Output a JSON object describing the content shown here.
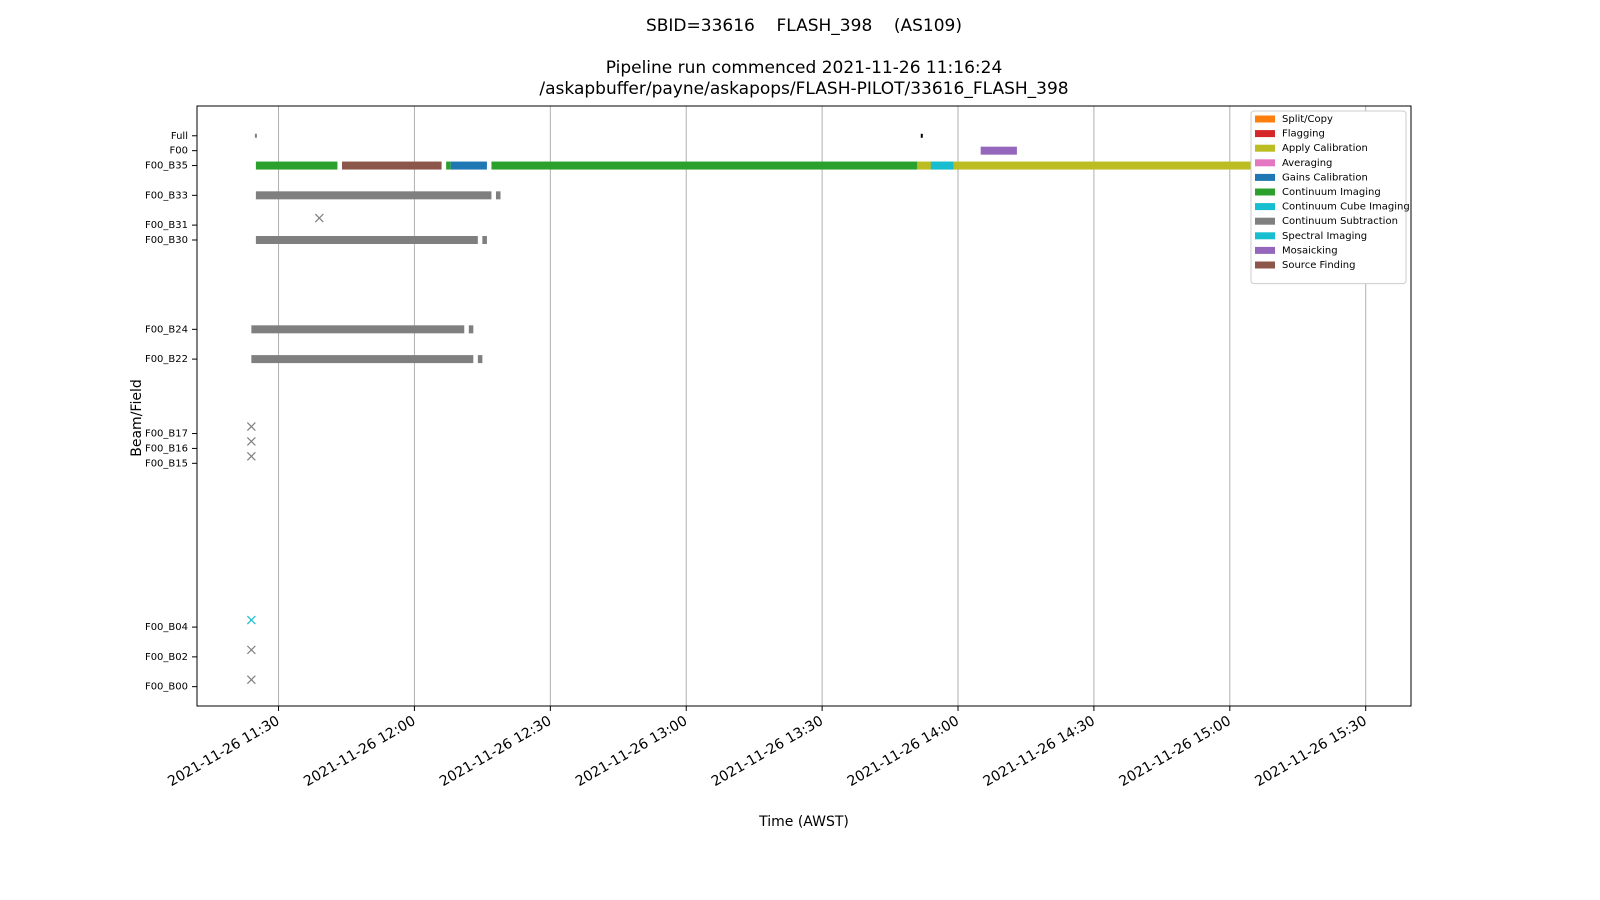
{
  "chart_data": {
    "type": "gantt",
    "title": "SBID=33616    FLASH_398    (AS109)",
    "subtitle": [
      "Pipeline run commenced 2021-11-26 11:16:24",
      "/askapbuffer/payne/askapops/FLASH-PILOT/33616_FLASH_398"
    ],
    "x_label": "Time (AWST)",
    "y_label": "Beam/Field",
    "xlim": [
      "2021-11-26 11:12",
      "2021-11-26 15:40"
    ],
    "xticks": [
      "2021-11-26 11:30",
      "2021-11-26 12:00",
      "2021-11-26 12:30",
      "2021-11-26 13:00",
      "2021-11-26 13:30",
      "2021-11-26 14:00",
      "2021-11-26 14:30",
      "2021-11-26 15:00",
      "2021-11-26 15:30"
    ],
    "ylim": [
      -1.3,
      39
    ],
    "yticks": [
      {
        "value": 37,
        "label": "Full"
      },
      {
        "value": 36,
        "label": "F00"
      },
      {
        "value": 35,
        "label": "F00_B35"
      },
      {
        "value": 33,
        "label": "F00_B33"
      },
      {
        "value": 31,
        "label": "F00_B31"
      },
      {
        "value": 30,
        "label": "F00_B30"
      },
      {
        "value": 24,
        "label": "F00_B24"
      },
      {
        "value": 22,
        "label": "F00_B22"
      },
      {
        "value": 17,
        "label": "F00_B17"
      },
      {
        "value": 16,
        "label": "F00_B16"
      },
      {
        "value": 15,
        "label": "F00_B15"
      },
      {
        "value": 4,
        "label": "F00_B04"
      },
      {
        "value": 2,
        "label": "F00_B02"
      },
      {
        "value": 0,
        "label": "F00_B00"
      }
    ],
    "grid": "x",
    "legend": "upper right",
    "stages": [
      {
        "name": "Split/Copy",
        "color": "#ff7f0e"
      },
      {
        "name": "Flagging",
        "color": "#d62728"
      },
      {
        "name": "Apply Calibration",
        "color": "#bcbd22"
      },
      {
        "name": "Averaging",
        "color": "#e377c2"
      },
      {
        "name": "Gains Calibration",
        "color": "#1f77b4"
      },
      {
        "name": "Continuum Imaging",
        "color": "#2ca02c"
      },
      {
        "name": "Continuum Cube Imaging",
        "color": "#17becf"
      },
      {
        "name": "Continuum Subtraction",
        "color": "#7f7f7f"
      },
      {
        "name": "Spectral Imaging",
        "color": "#17becf"
      },
      {
        "name": "Mosaicking",
        "color": "#9467bd"
      },
      {
        "name": "Source Finding",
        "color": "#8c564b"
      }
    ],
    "tasks": [
      {
        "row": 36,
        "start": "2021-11-26 14:05",
        "end": "2021-11-26 14:13",
        "stage": 9
      },
      {
        "row": 35,
        "start": "2021-11-26 13:51",
        "end": "2021-11-26 15:28",
        "stage": 2
      },
      {
        "row": 35,
        "start": "2021-11-26 11:25",
        "end": "2021-11-26 11:43",
        "stage": 5
      },
      {
        "row": 35,
        "start": "2021-11-26 11:44",
        "end": "2021-11-26 12:06",
        "stage": 10
      },
      {
        "row": 35,
        "start": "2021-11-26 12:07",
        "end": "2021-11-26 12:08",
        "stage": 5
      },
      {
        "row": 35,
        "start": "2021-11-26 12:08",
        "end": "2021-11-26 12:16",
        "stage": 4
      },
      {
        "row": 35,
        "start": "2021-11-26 12:17",
        "end": "2021-11-26 13:51",
        "stage": 5
      },
      {
        "row": 35,
        "start": "2021-11-26 13:54",
        "end": "2021-11-26 13:59",
        "stage": 6
      },
      {
        "row": 33,
        "start": "2021-11-26 11:25",
        "end": "2021-11-26 12:17",
        "stage": 7
      },
      {
        "row": 33,
        "start": "2021-11-26 12:18",
        "end": "2021-11-26 12:19",
        "stage": 7
      },
      {
        "row": 30,
        "start": "2021-11-26 11:25",
        "end": "2021-11-26 12:14",
        "stage": 7
      },
      {
        "row": 30,
        "start": "2021-11-26 12:15",
        "end": "2021-11-26 12:16",
        "stage": 7
      },
      {
        "row": 24,
        "start": "2021-11-26 11:24",
        "end": "2021-11-26 12:11",
        "stage": 7
      },
      {
        "row": 24,
        "start": "2021-11-26 12:12",
        "end": "2021-11-26 12:13",
        "stage": 7
      },
      {
        "row": 22,
        "start": "2021-11-26 11:24",
        "end": "2021-11-26 12:13",
        "stage": 7
      },
      {
        "row": 22,
        "start": "2021-11-26 12:14",
        "end": "2021-11-26 12:15",
        "stage": 7
      }
    ],
    "markers": [
      {
        "row": 37,
        "time": "2021-11-26 11:25",
        "symbol": "dot",
        "color": "#7f7f7f"
      },
      {
        "row": 37,
        "time": "2021-11-26 13:52",
        "symbol": "dot",
        "color": "#000000"
      },
      {
        "row": 31,
        "time": "2021-11-26 11:39",
        "symbol": "x",
        "color": "#7f7f7f"
      },
      {
        "row": 17,
        "time": "2021-11-26 11:24",
        "symbol": "x",
        "color": "#7f7f7f"
      },
      {
        "row": 16,
        "time": "2021-11-26 11:24",
        "symbol": "x",
        "color": "#7f7f7f"
      },
      {
        "row": 15,
        "time": "2021-11-26 11:24",
        "symbol": "x",
        "color": "#7f7f7f"
      },
      {
        "row": 4,
        "time": "2021-11-26 11:24",
        "symbol": "x",
        "color": "#17becf"
      },
      {
        "row": 2,
        "time": "2021-11-26 11:24",
        "symbol": "x",
        "color": "#7f7f7f"
      },
      {
        "row": 0,
        "time": "2021-11-26 11:24",
        "symbol": "x",
        "color": "#7f7f7f"
      }
    ]
  }
}
